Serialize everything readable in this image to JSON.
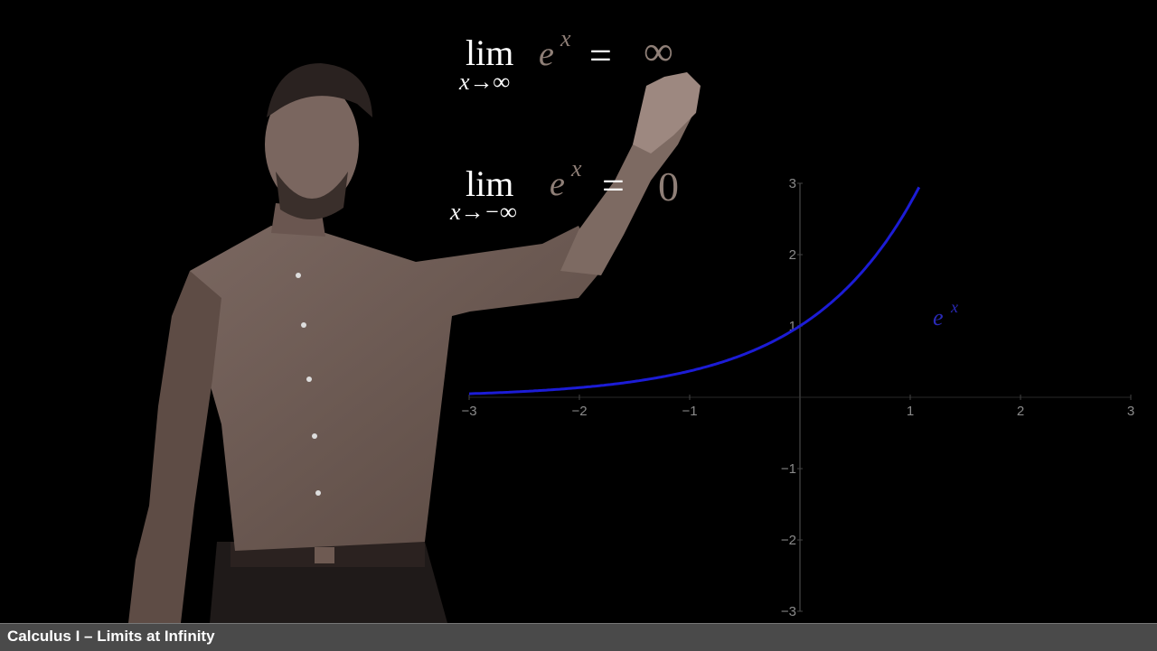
{
  "footer": {
    "title": "Calculus I – Limits at Infinity"
  },
  "limits": [
    {
      "lim": "lim",
      "sub": "x→∞",
      "expr": "e",
      "exp": "x",
      "eq": "=",
      "result": "∞"
    },
    {
      "lim": "lim",
      "sub": "x→−∞",
      "expr": "e",
      "exp": "x",
      "eq": "=",
      "result": "0"
    }
  ],
  "chart_data": {
    "type": "line",
    "title": "",
    "xlabel": "",
    "ylabel": "",
    "xlim": [
      -3,
      3
    ],
    "ylim": [
      -3,
      3
    ],
    "x_ticks": [
      "−3",
      "−2",
      "−1",
      "1",
      "2",
      "3"
    ],
    "y_ticks": [
      "3",
      "2",
      "1",
      "−1",
      "−2",
      "−3"
    ],
    "series": [
      {
        "name": "e^x",
        "color": "#1c1cd6",
        "x": [
          -3,
          -2.5,
          -2,
          -1.5,
          -1,
          -0.5,
          0,
          0.25,
          0.5,
          0.75,
          1,
          1.1
        ],
        "y": [
          0.05,
          0.08,
          0.14,
          0.22,
          0.37,
          0.61,
          1,
          1.28,
          1.65,
          2.12,
          2.72,
          3.0
        ]
      }
    ],
    "curve_label": {
      "base": "e",
      "exp": "x"
    },
    "grid": false
  },
  "colors": {
    "curve": "#1c1cd6",
    "presenter_shirt": "#6e5a52",
    "background": "#000000"
  }
}
